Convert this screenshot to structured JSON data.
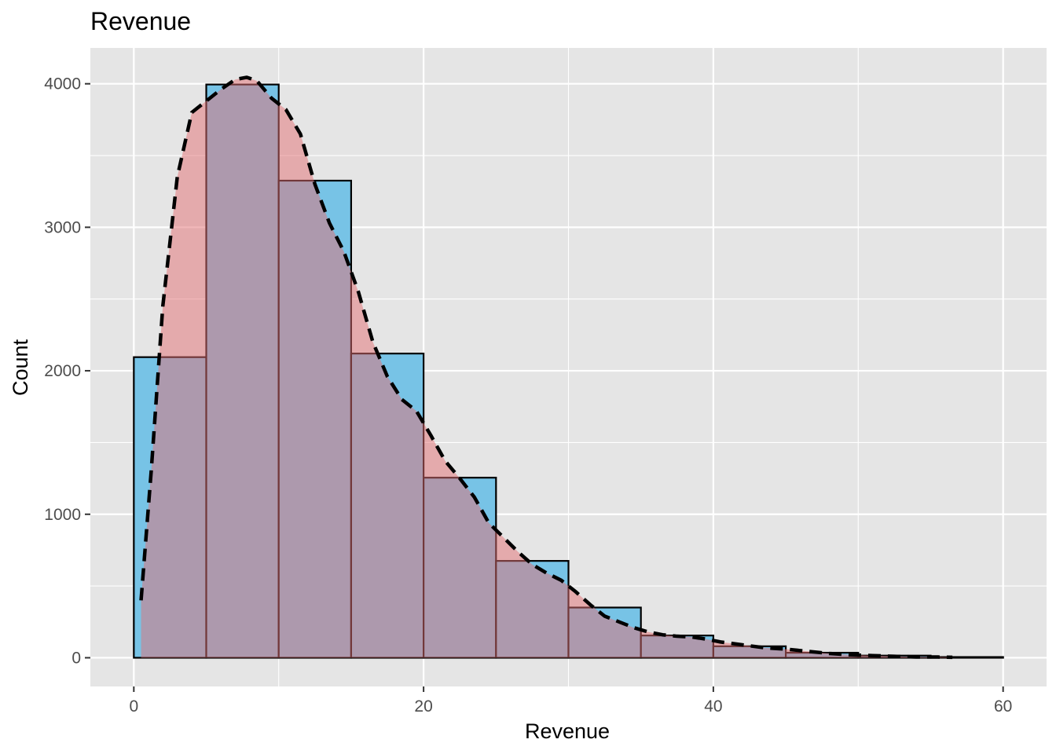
{
  "chart_data": {
    "type": "bar",
    "title": "Revenue",
    "xlabel": "Revenue",
    "ylabel": "Count",
    "xlim": [
      -3,
      63
    ],
    "ylim": [
      -200,
      4250
    ],
    "x_ticks": [
      0,
      20,
      40,
      60
    ],
    "y_ticks": [
      0,
      1000,
      2000,
      3000,
      4000
    ],
    "grid": true,
    "bin_width": 5,
    "bins": [
      {
        "x0": 0,
        "x1": 5,
        "count": 2095
      },
      {
        "x0": 5,
        "x1": 10,
        "count": 3995
      },
      {
        "x0": 10,
        "x1": 15,
        "count": 3325
      },
      {
        "x0": 15,
        "x1": 20,
        "count": 2120
      },
      {
        "x0": 20,
        "x1": 25,
        "count": 1255
      },
      {
        "x0": 25,
        "x1": 30,
        "count": 675
      },
      {
        "x0": 30,
        "x1": 35,
        "count": 350
      },
      {
        "x0": 35,
        "x1": 40,
        "count": 155
      },
      {
        "x0": 40,
        "x1": 45,
        "count": 80
      },
      {
        "x0": 45,
        "x1": 50,
        "count": 35
      },
      {
        "x0": 50,
        "x1": 55,
        "count": 15
      },
      {
        "x0": 55,
        "x1": 60,
        "count": 5
      }
    ],
    "density_curve": {
      "x": [
        0.5,
        1.2,
        2.0,
        3.0,
        4.0,
        5.0,
        6.0,
        7.0,
        7.8,
        8.5,
        9.5,
        10.5,
        11.5,
        12.5,
        13.5,
        14.5,
        15.5,
        16.5,
        17.5,
        18.5,
        19.5,
        20.5,
        21.5,
        22.5,
        23.5,
        24.5,
        25.5,
        26.5,
        27.5,
        28.5,
        29.5,
        30.5,
        31.5,
        32.5,
        33.5,
        34.5,
        35.5,
        36.5,
        37.5,
        38.5,
        39.5,
        40.5,
        42.0,
        43.5,
        45.0,
        46.5,
        48.0,
        49.5,
        51.0,
        52.5,
        54.0,
        55.5,
        56.5
      ],
      "y": [
        400,
        1300,
        2450,
        3350,
        3800,
        3880,
        3960,
        4030,
        4045,
        4020,
        3900,
        3820,
        3650,
        3300,
        3030,
        2830,
        2550,
        2200,
        1960,
        1800,
        1720,
        1550,
        1370,
        1250,
        1120,
        940,
        840,
        740,
        650,
        590,
        540,
        460,
        370,
        290,
        250,
        210,
        180,
        160,
        150,
        145,
        130,
        110,
        90,
        70,
        60,
        45,
        30,
        20,
        15,
        10,
        5,
        5,
        3
      ]
    },
    "colors": {
      "histogram_fill": "#77c3e6",
      "histogram_stroke": "#000000",
      "density_fill": "#e46f73",
      "density_fill_opacity": 0.5,
      "density_line": "#000000",
      "panel_background": "#e5e5e5",
      "grid": "#ffffff"
    }
  }
}
